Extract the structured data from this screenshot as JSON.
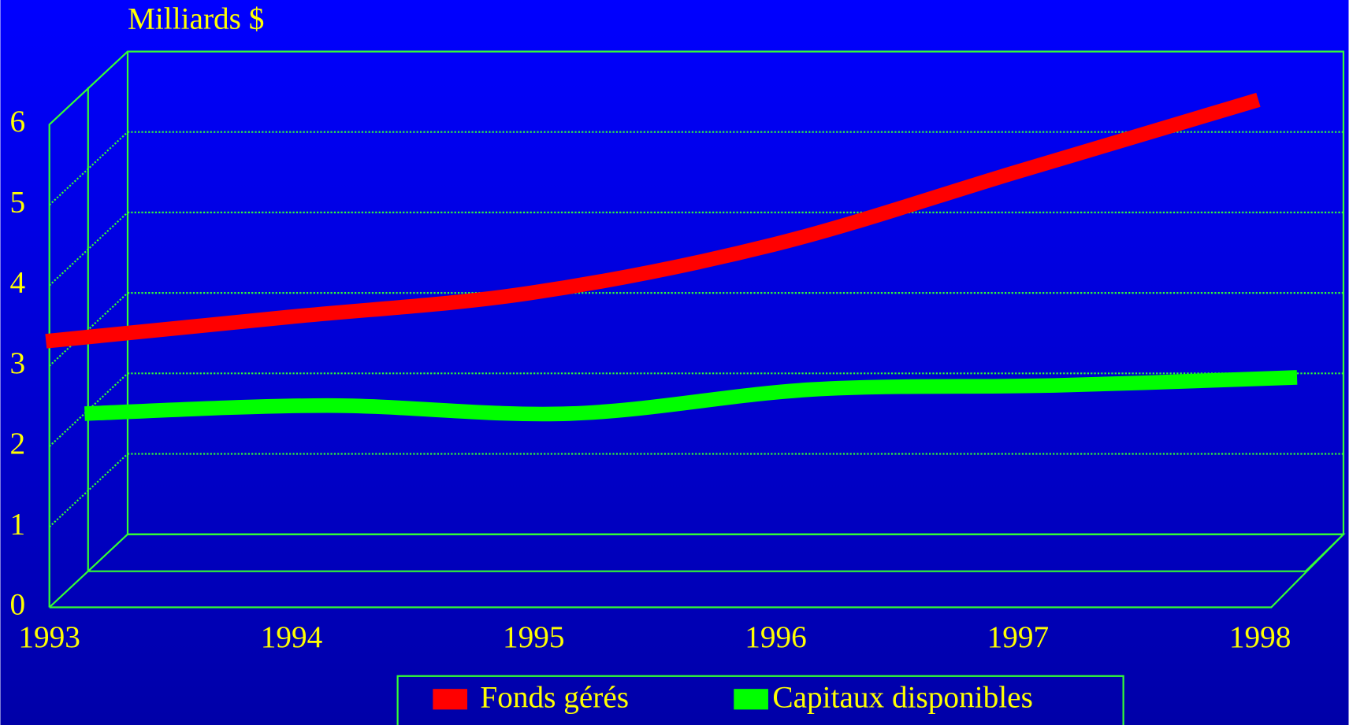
{
  "chart_data": {
    "type": "line",
    "y_label": "Milliards $",
    "x": [
      1993,
      1994,
      1995,
      1996,
      1997,
      1998
    ],
    "series": [
      {
        "name": "Fonds gérés",
        "color": "#ff0000",
        "values": [
          2.4,
          2.7,
          3.0,
          3.6,
          4.5,
          5.4
        ]
      },
      {
        "name": "Capitaux disponibles",
        "color": "#00ff00",
        "values": [
          1.5,
          1.6,
          1.5,
          1.8,
          1.85,
          1.95
        ]
      }
    ],
    "ylim": [
      0,
      6
    ],
    "yticks": [
      0,
      1,
      2,
      3,
      4,
      5,
      6
    ],
    "xlim": [
      1993,
      1998
    ],
    "grid": true
  }
}
